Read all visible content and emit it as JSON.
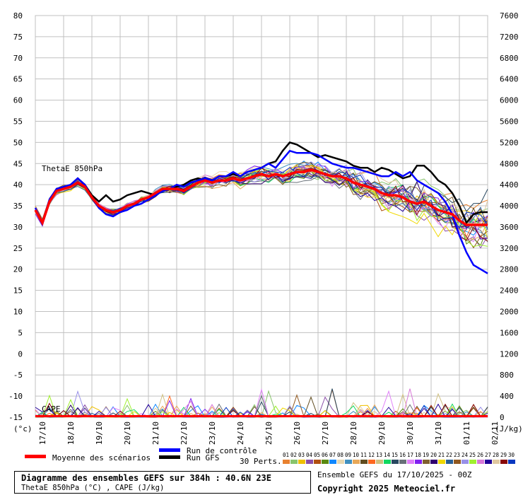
{
  "chart_data": {
    "type": "line",
    "title": "Diagramme des ensembles GEFS sur 384h : 40.6N 23E",
    "subtitle": "ThetaE 850hPa (°C) , CAPE (J/kg)",
    "run_info": "Ensemble GEFS du 17/10/2025 - 00Z",
    "copyright": "Copyright 2025 Meteociel.fr",
    "panel_labels": {
      "thetae": "ThetaE 850hPa",
      "cape": "CAPE"
    },
    "left_axis": {
      "unit": "(°c)",
      "ylim": [
        -15,
        80
      ],
      "ticks": [
        80,
        75,
        70,
        65,
        60,
        55,
        50,
        45,
        40,
        35,
        30,
        25,
        20,
        15,
        10,
        5,
        0,
        -5,
        -10,
        -15
      ]
    },
    "right_axis": {
      "unit": "(J/kg)",
      "ylim": [
        0,
        7600
      ],
      "ticks": [
        7600,
        7200,
        6800,
        6400,
        6000,
        5600,
        5200,
        4800,
        4400,
        4000,
        3600,
        3200,
        2800,
        2400,
        2000,
        1600,
        1200,
        800,
        400,
        0
      ]
    },
    "x_step_hours": 6,
    "x_range_hours": [
      0,
      384
    ],
    "date_labels": [
      "17/10",
      "18/10",
      "19/10",
      "20/10",
      "21/10",
      "22/10",
      "23/10",
      "24/10",
      "25/10",
      "26/10",
      "27/10",
      "28/10",
      "29/10",
      "30/10",
      "31/10",
      "01/11",
      "02/11"
    ],
    "grid": true,
    "legend": {
      "mean": {
        "label": "Moyenne des scénarios",
        "color": "#ff0000"
      },
      "control": {
        "label": "Run de contrôle",
        "color": "#0000ff"
      },
      "gfs": {
        "label": "Run GFS",
        "color": "#000000"
      },
      "perts_label": "30 Perts.",
      "perts": [
        {
          "id": "01",
          "color": "#e8812f"
        },
        {
          "id": "02",
          "color": "#88c46c"
        },
        {
          "id": "03",
          "color": "#f0c000"
        },
        {
          "id": "04",
          "color": "#8a4ea8"
        },
        {
          "id": "05",
          "color": "#b05010"
        },
        {
          "id": "06",
          "color": "#5a8a10"
        },
        {
          "id": "07",
          "color": "#1088ff"
        },
        {
          "id": "08",
          "color": "#e8d8b0"
        },
        {
          "id": "09",
          "color": "#4090c0"
        },
        {
          "id": "10",
          "color": "#e8a858"
        },
        {
          "id": "11",
          "color": "#604c20"
        },
        {
          "id": "12",
          "color": "#ff6820"
        },
        {
          "id": "13",
          "color": "#d0c080"
        },
        {
          "id": "14",
          "color": "#10d860"
        },
        {
          "id": "15",
          "color": "#284860"
        },
        {
          "id": "16",
          "color": "#687078"
        },
        {
          "id": "17",
          "color": "#e080f8"
        },
        {
          "id": "18",
          "color": "#8020f0"
        },
        {
          "id": "19",
          "color": "#806030"
        },
        {
          "id": "20",
          "color": "#300070"
        },
        {
          "id": "21",
          "color": "#f0d800"
        },
        {
          "id": "22",
          "color": "#286098"
        },
        {
          "id": "23",
          "color": "#905820"
        },
        {
          "id": "24",
          "color": "#9890e8"
        },
        {
          "id": "25",
          "color": "#a0f030"
        },
        {
          "id": "26",
          "color": "#d878d8"
        },
        {
          "id": "27",
          "color": "#200098"
        },
        {
          "id": "28",
          "color": "#e0c8a0"
        },
        {
          "id": "29",
          "color": "#880808"
        },
        {
          "id": "30",
          "color": "#0838c0"
        }
      ]
    },
    "series": [
      {
        "name": "Moyenne des scénarios",
        "variable": "thetae",
        "values": [
          34,
          31,
          36,
          38.5,
          39,
          39.5,
          40.5,
          39.5,
          37,
          35,
          34,
          33.5,
          34,
          35,
          35.5,
          36.5,
          37,
          38,
          39,
          39,
          39,
          38.5,
          39.5,
          40.5,
          41,
          40.5,
          41,
          41,
          41.5,
          41,
          41.5,
          42,
          42.5,
          42,
          42.5,
          42,
          42.5,
          43,
          43,
          43.5,
          43,
          42.5,
          42,
          42,
          41.5,
          40.5,
          40,
          39.5,
          39,
          38,
          37.5,
          37.5,
          37,
          36,
          35.5,
          36,
          35,
          34,
          33.5,
          33,
          31.5,
          30.5,
          30.5,
          30.5,
          30.5
        ]
      },
      {
        "name": "Run de contrôle",
        "variable": "thetae",
        "values": [
          34.5,
          31,
          36.5,
          39,
          39.5,
          40,
          41.5,
          40,
          37,
          34.5,
          33,
          32.5,
          33.5,
          34,
          35,
          35.5,
          36.5,
          37.5,
          38.5,
          39,
          40,
          39.5,
          40.5,
          41,
          41.5,
          41,
          42,
          42,
          43,
          42,
          43,
          43.5,
          44,
          45,
          44,
          46,
          48,
          47.5,
          47.5,
          47.5,
          47,
          46,
          45,
          44.5,
          44,
          44,
          43.5,
          43,
          42.5,
          42,
          42,
          43,
          42,
          43,
          41,
          40,
          39,
          38,
          36,
          33,
          28,
          24,
          21,
          20,
          19
        ]
      },
      {
        "name": "Run GFS",
        "variable": "thetae",
        "values": [
          34,
          31,
          36,
          38.5,
          39,
          40,
          41.5,
          40,
          37.5,
          36,
          37.5,
          36,
          36.5,
          37.5,
          38,
          38.5,
          38,
          37.5,
          38.5,
          39,
          39.5,
          40,
          41,
          41.5,
          41,
          41,
          42,
          42,
          42.5,
          42,
          43,
          43.5,
          44,
          45,
          45.5,
          48,
          50,
          49.5,
          48.5,
          47.5,
          46.5,
          47,
          46.5,
          46,
          45.5,
          44.5,
          44,
          44,
          43,
          44,
          43.5,
          42.5,
          41.5,
          42,
          44.5,
          44.5,
          43,
          41,
          40,
          38,
          35,
          31,
          33,
          33.5,
          33.5
        ]
      }
    ],
    "perturbation_spread_c": {
      "start": 0.8,
      "end": 7
    },
    "cape_mean_jkg": 20
  }
}
